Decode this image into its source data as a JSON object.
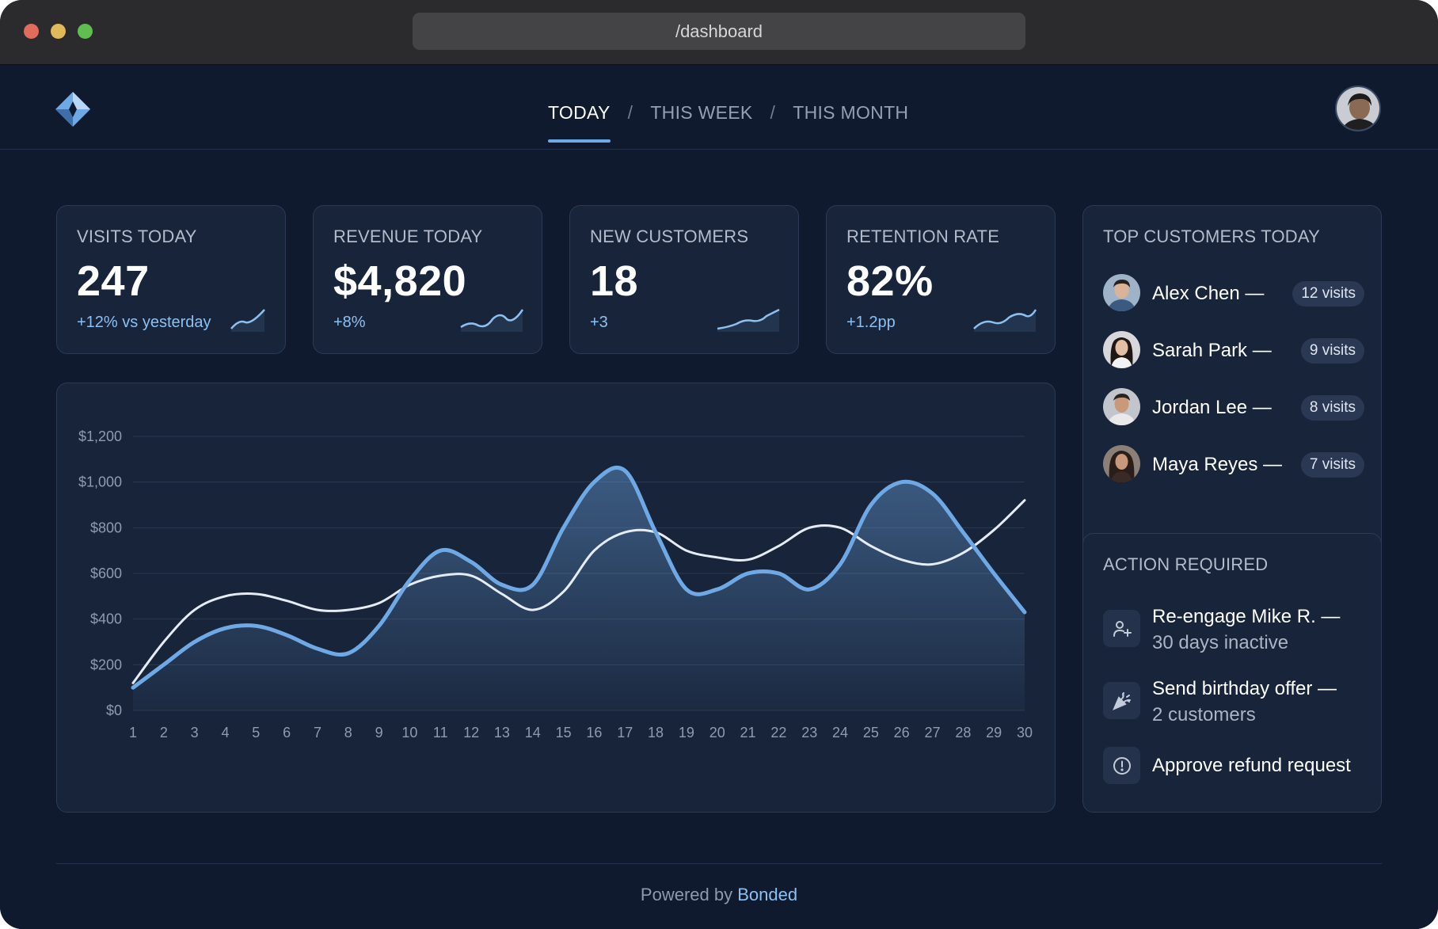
{
  "browser": {
    "url": "/dashboard"
  },
  "nav": {
    "tabs": [
      {
        "label": "TODAY",
        "active": true
      },
      {
        "label": "THIS WEEK",
        "active": false
      },
      {
        "label": "THIS MONTH",
        "active": false
      }
    ],
    "separator": "/"
  },
  "stats": [
    {
      "label": "VISITS TODAY",
      "value": "247",
      "delta": "+12% vs yesterday"
    },
    {
      "label": "REVENUE TODAY",
      "value": "$4,820",
      "delta": "+8%"
    },
    {
      "label": "NEW CUSTOMERS",
      "value": "18",
      "delta": "+3"
    },
    {
      "label": "RETENTION RATE",
      "value": "82%",
      "delta": "+1.2pp"
    }
  ],
  "top_customers": {
    "title": "TOP CUSTOMERS TODAY",
    "items": [
      {
        "name": "Alex Chen —",
        "visits": "12 visits"
      },
      {
        "name": "Sarah Park —",
        "visits": "9 visits"
      },
      {
        "name": "Jordan Lee —",
        "visits": "8 visits"
      },
      {
        "name": "Maya Reyes —",
        "visits": "7 visits"
      }
    ]
  },
  "actions": {
    "title": "ACTION REQUIRED",
    "items": [
      {
        "title": "Re-engage Mike R. —",
        "subtitle": "30 days inactive",
        "icon": "user-plus-icon"
      },
      {
        "title": "Send birthday offer —",
        "subtitle": "2 customers",
        "icon": "party-popper-icon"
      },
      {
        "title": "Approve refund request",
        "subtitle": "",
        "icon": "alert-circle-icon"
      }
    ]
  },
  "footer": {
    "prefix": "Powered by",
    "brand": "Bonded"
  },
  "colors": {
    "background": "#0f1a2e",
    "card": "#18243a",
    "accent": "#6ea9e6",
    "secondary_line": "#e6ecf5"
  },
  "chart_data": {
    "type": "line",
    "title": "",
    "xlabel": "",
    "ylabel": "",
    "x": [
      1,
      2,
      3,
      4,
      5,
      6,
      7,
      8,
      9,
      10,
      11,
      12,
      13,
      14,
      15,
      16,
      17,
      18,
      19,
      20,
      21,
      22,
      23,
      24,
      25,
      26,
      27,
      28,
      29,
      30
    ],
    "ylim": [
      0,
      1200
    ],
    "yticks": [
      "$0",
      "$200",
      "$400",
      "$600",
      "$800",
      "$1,000",
      "$1,200"
    ],
    "ytick_values": [
      0,
      200,
      400,
      600,
      800,
      1000,
      1200
    ],
    "grid": true,
    "series": [
      {
        "style": "area",
        "color": "#6ea9e6",
        "values": [
          100,
          200,
          300,
          360,
          370,
          330,
          270,
          250,
          370,
          570,
          700,
          650,
          550,
          550,
          800,
          1000,
          1050,
          780,
          530,
          530,
          600,
          600,
          530,
          640,
          900,
          1000,
          950,
          780,
          600,
          430
        ]
      },
      {
        "style": "line",
        "color": "#e6ecf5",
        "values": [
          120,
          300,
          440,
          500,
          510,
          480,
          440,
          440,
          470,
          550,
          590,
          590,
          510,
          440,
          520,
          700,
          780,
          780,
          700,
          670,
          660,
          720,
          800,
          800,
          720,
          660,
          640,
          690,
          790,
          920
        ]
      }
    ]
  }
}
